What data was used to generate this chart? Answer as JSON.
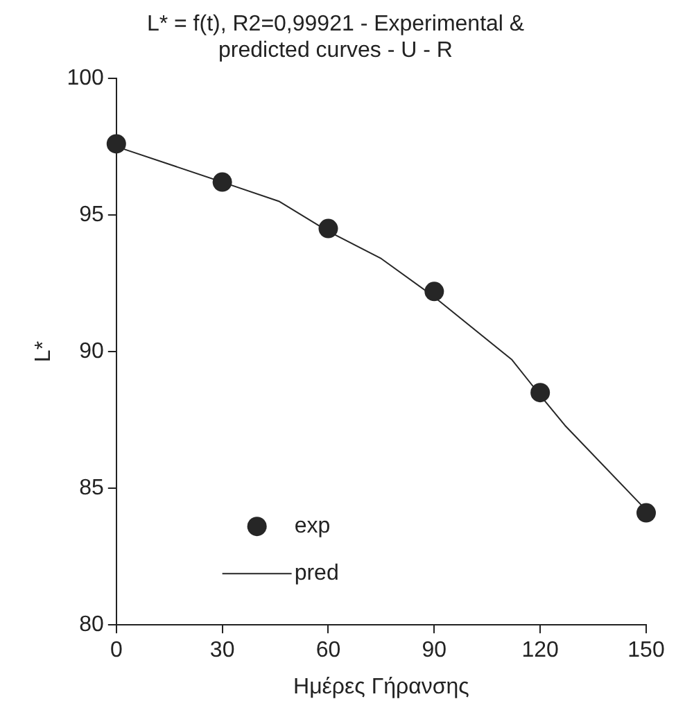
{
  "chart_data": {
    "type": "scatter",
    "title": [
      "L* = f(t), R2=0,99921 - Experimental &",
      "predicted curves - U - R"
    ],
    "xlabel": "Ημέρες Γήρανσης",
    "ylabel": "L*",
    "series": [
      {
        "name": "exp",
        "color": "#262626",
        "x": [
          0,
          30,
          60,
          90,
          120,
          150
        ],
        "values": [
          97.6,
          96.2,
          94.5,
          92.2,
          88.5,
          84.1
        ],
        "marker": "circle"
      },
      {
        "name": "pred",
        "type": "line",
        "color": "#262626",
        "x": [
          0,
          30,
          46,
          60,
          75,
          90,
          112,
          120,
          127,
          150
        ],
        "values": [
          97.5,
          96.2,
          95.5,
          94.4,
          93.4,
          92.0,
          89.7,
          88.4,
          87.3,
          84.2
        ],
        "marker": "none",
        "line_style": "solid"
      }
    ],
    "xlim": [
      0,
      150
    ],
    "xticks": [
      0,
      30,
      60,
      90,
      120,
      150
    ],
    "ylim": [
      80,
      100
    ],
    "yticks": [
      80,
      85,
      90,
      95,
      100
    ],
    "grid": false,
    "legend": "bottom left"
  }
}
